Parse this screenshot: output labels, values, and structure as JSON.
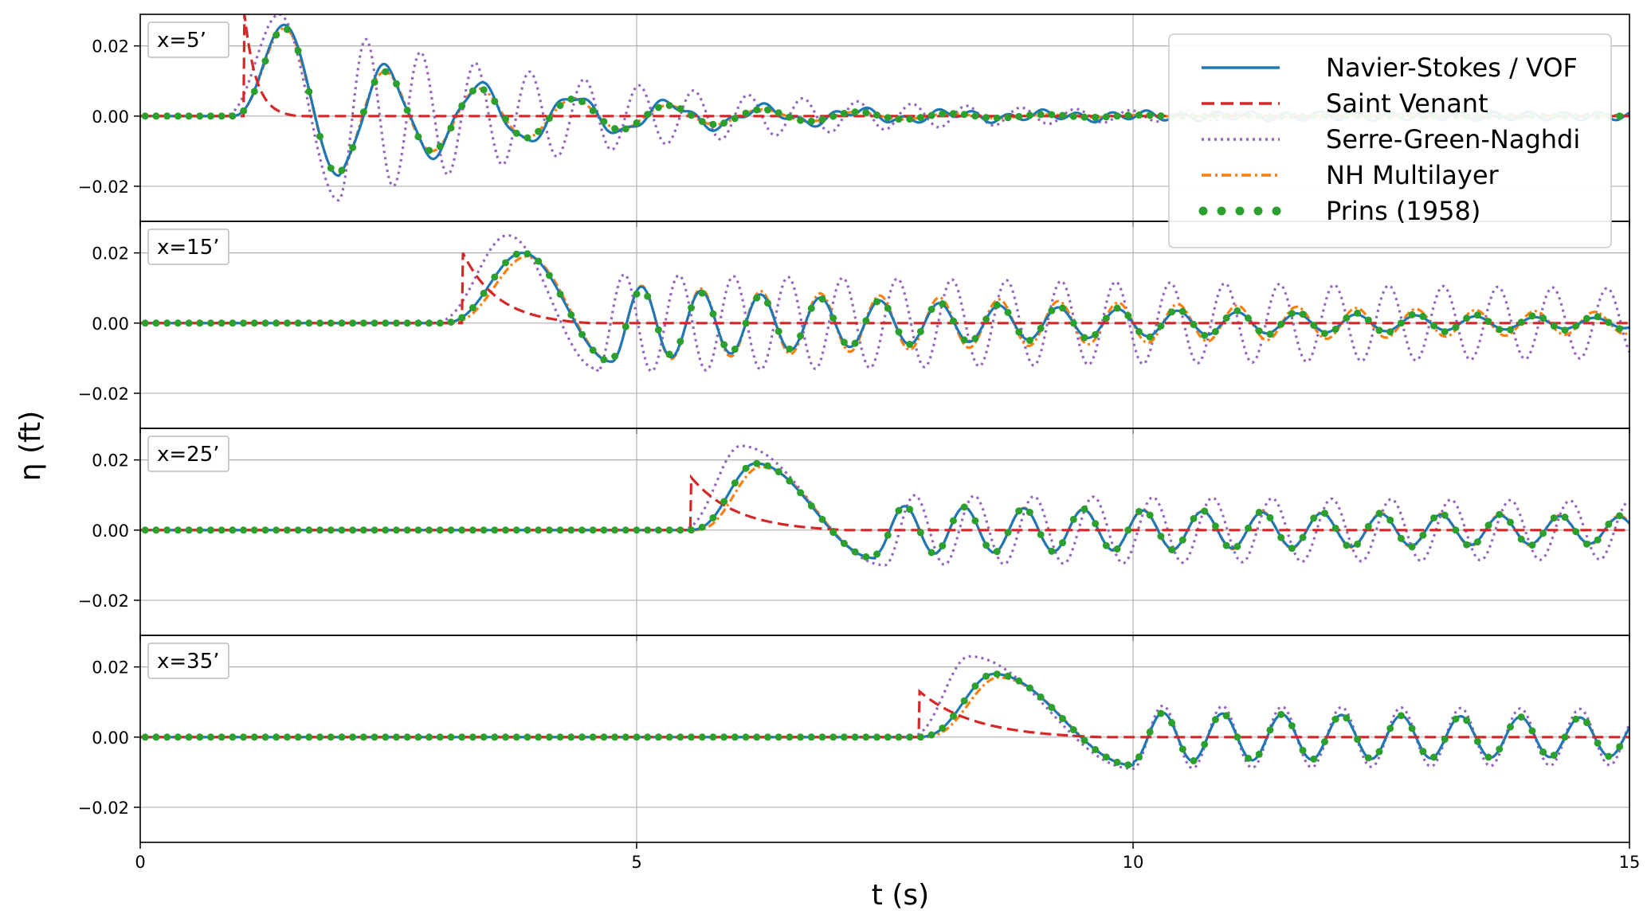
{
  "chart_data": {
    "type": "line",
    "ylabel": "η (ft)",
    "xlabel": "t (s)",
    "xlim": [
      0,
      15
    ],
    "ylim": [
      -0.03,
      0.029
    ],
    "xticks": [
      0,
      5,
      10,
      15
    ],
    "yticks": [
      -0.02,
      0.0,
      0.02
    ],
    "xtick_labels": [
      "0",
      "5",
      "10",
      "15"
    ],
    "ytick_labels": [
      "−0.02",
      "0.00",
      "0.02"
    ],
    "grid": true,
    "legend_position": "top-right",
    "series": [
      {
        "name": "Navier-Stokes / VOF",
        "color": "#1f77b4",
        "style": "solid"
      },
      {
        "name": "Saint Venant",
        "color": "#d62728",
        "style": "dashed"
      },
      {
        "name": "Serre-Green-Naghdi",
        "color": "#9467bd",
        "style": "dotted"
      },
      {
        "name": "NH Multilayer",
        "color": "#ff7f0e",
        "style": "dashdot"
      },
      {
        "name": "Prins (1958)",
        "color": "#2ca02c",
        "style": "markers"
      }
    ],
    "panels": [
      {
        "label": "x=5’",
        "curves": {
          "Navier-Stokes / VOF": {
            "onset": 0.9,
            "period": 0.95,
            "peak": [
              1.45,
              0.026
            ],
            "trough": [
              2.0,
              -0.017
            ],
            "decay": 2.2,
            "amp": 0.017,
            "tail": 0.0012
          },
          "Saint Venant": {
            "jump": 1.05,
            "peak": 0.029,
            "decay": 0.12
          },
          "Serre-Green-Naghdi": {
            "onset": 0.8,
            "period": 0.55,
            "peak": [
              1.4,
              0.029
            ],
            "trough": [
              2.0,
              -0.024
            ],
            "decay": 3.0,
            "amp": 0.024
          },
          "NH Multilayer": {
            "onset": 0.9,
            "period": 0.95,
            "peak": [
              1.45,
              0.025
            ],
            "trough": [
              2.0,
              -0.017
            ],
            "decay": 2.0,
            "amp": 0.016
          },
          "Prins (1958)": {
            "onset": 0.9,
            "period": 0.95,
            "peak": [
              1.45,
              0.025
            ],
            "trough": [
              2.0,
              -0.017
            ],
            "decay": 2.0,
            "amp": 0.016
          }
        }
      },
      {
        "label": "x=15’",
        "curves": {
          "Navier-Stokes / VOF": {
            "onset": 3.0,
            "period": 0.6,
            "peak": [
              3.85,
              0.02
            ],
            "trough": [
              4.75,
              -0.011
            ],
            "amp": 0.011,
            "decay": 5.0
          },
          "Saint Venant": {
            "jump": 3.25,
            "peak": 0.02,
            "decay": 0.35
          },
          "Serre-Green-Naghdi": {
            "onset": 2.9,
            "period": 0.55,
            "peak": [
              3.7,
              0.025
            ],
            "trough": [
              4.6,
              -0.013
            ],
            "amp": 0.014,
            "decay": 30
          },
          "NH Multilayer": {
            "onset": 3.05,
            "period": 0.6,
            "peak": [
              3.9,
              0.019
            ],
            "trough": [
              4.75,
              -0.011
            ],
            "amp": 0.011,
            "decay": 8
          },
          "Prins (1958)": {
            "onset": 3.0,
            "period": 0.6,
            "peak": [
              3.85,
              0.02
            ],
            "trough": [
              4.75,
              -0.011
            ],
            "amp": 0.01,
            "decay": 6
          }
        }
      },
      {
        "label": "x=25’",
        "curves": {
          "Navier-Stokes / VOF": {
            "onset": 5.5,
            "period": 0.6,
            "peak": [
              6.2,
              0.019
            ],
            "trough": [
              7.4,
              -0.008
            ],
            "amp": 0.007,
            "decay": 12
          },
          "Saint Venant": {
            "jump": 5.55,
            "peak": 0.015,
            "decay": 0.45
          },
          "Serre-Green-Naghdi": {
            "onset": 5.4,
            "period": 0.6,
            "peak": [
              6.05,
              0.024
            ],
            "trough": [
              7.5,
              -0.01
            ],
            "amp": 0.01,
            "decay": 40
          },
          "NH Multilayer": {
            "onset": 5.55,
            "period": 0.6,
            "peak": [
              6.25,
              0.018
            ],
            "trough": [
              7.4,
              -0.008
            ],
            "amp": 0.007,
            "decay": 14
          },
          "Prins (1958)": {
            "onset": 5.5,
            "period": 0.6,
            "peak": [
              6.2,
              0.019
            ],
            "trough": [
              7.4,
              -0.008
            ],
            "amp": 0.007,
            "decay": 14
          }
        }
      },
      {
        "label": "x=35’",
        "curves": {
          "Navier-Stokes / VOF": {
            "onset": 7.8,
            "period": 0.6,
            "peak": [
              8.6,
              0.018
            ],
            "trough": [
              10.0,
              -0.008
            ],
            "amp": 0.007,
            "decay": 20
          },
          "Saint Venant": {
            "jump": 7.85,
            "peak": 0.013,
            "decay": 0.55
          },
          "Serre-Green-Naghdi": {
            "onset": 7.7,
            "period": 0.6,
            "peak": [
              8.35,
              0.023
            ],
            "trough": [
              10.0,
              -0.009
            ],
            "amp": 0.009,
            "decay": 40
          },
          "NH Multilayer": {
            "onset": 7.85,
            "period": 0.6,
            "peak": [
              8.65,
              0.017
            ],
            "trough": [
              10.0,
              -0.008
            ],
            "amp": 0.007,
            "decay": 20
          },
          "Prins (1958)": {
            "onset": 7.8,
            "period": 0.6,
            "peak": [
              8.6,
              0.018
            ],
            "trough": [
              10.0,
              -0.008
            ],
            "amp": 0.007,
            "decay": 20
          }
        }
      }
    ]
  }
}
